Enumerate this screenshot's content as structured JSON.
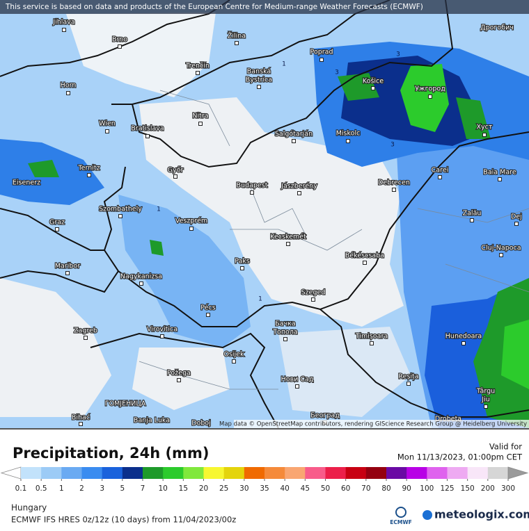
{
  "header": {
    "notice": "This service is based on data and products of the European Centre for Medium-range Weather Forecasts (ECMWF)"
  },
  "map": {
    "attribution": "Map data © OpenStreetMap contributors, rendering GIScience Research Group @ Heidelberg University",
    "contours": [
      "1",
      "3",
      "3",
      "3",
      "1",
      "1"
    ],
    "cities": [
      "Jihlava",
      "Brno",
      "Žilina",
      "Дрогобич",
      "Poprad",
      "Trenčín",
      "Banská",
      "Bystrica",
      "Košice",
      "Ужгород",
      "Horn",
      "Nitra",
      "Wien",
      "Bratislava",
      "Salgótarján",
      "Miskolc",
      "Хуст",
      "Ternitz",
      "Győr",
      "Carei",
      "Baia Mare",
      "Eisenerz",
      "Budapest",
      "Jászberény",
      "Debrecen",
      "Szombathely",
      "Zalău",
      "Graz",
      "Veszprém",
      "Dej",
      "Kecskemét",
      "Cluj-Napoca",
      "Maribor",
      "Paks",
      "Békéscsaba",
      "Nagykanizsa",
      "Szeged",
      "Pécs",
      "Бачка",
      "Топола",
      "Zagreb",
      "Virovitica",
      "Timișoara",
      "Hunedoara",
      "Osijek",
      "Požega",
      "Нови Сад",
      "Reșița",
      "Târgu",
      "Jiu",
      "ГОМЈЕНИЦА",
      "Bihać",
      "Banja Luka",
      "Doboj",
      "Београд",
      "Drobeta"
    ]
  },
  "legend": {
    "title": "Precipitation, 24h (mm)",
    "valid_label": "Valid for",
    "valid_time": "Mon 11/13/2023, 01:00pm CET",
    "ticks": [
      0.1,
      0.5,
      1,
      2,
      3,
      5,
      7,
      10,
      15,
      20,
      25,
      30,
      35,
      40,
      45,
      50,
      60,
      70,
      80,
      90,
      100,
      125,
      150,
      200,
      300
    ],
    "colors": [
      "#c2e2fb",
      "#9ccbf6",
      "#6aaaf2",
      "#3a8cf0",
      "#1a62dc",
      "#0b2f8c",
      "#1e9a2a",
      "#2ccb2c",
      "#80e83c",
      "#f7f731",
      "#e4d40c",
      "#f06a00",
      "#f58a3a",
      "#f9a672",
      "#f85c8a",
      "#ec1f4a",
      "#c80012",
      "#940010",
      "#6a0aa4",
      "#b800e6",
      "#df62ee",
      "#eeaaf2",
      "#f8e6f8",
      "#d6d6d6"
    ],
    "under_color": "#ffffff",
    "over_color": "#9a9a9a"
  },
  "footer": {
    "region": "Hungary",
    "model": "ECMWF IFS HRES 0z/12z (10 days) from 11/04/2023/00z",
    "logo_left": "ECMWF",
    "logo_right": "meteologix.com"
  }
}
